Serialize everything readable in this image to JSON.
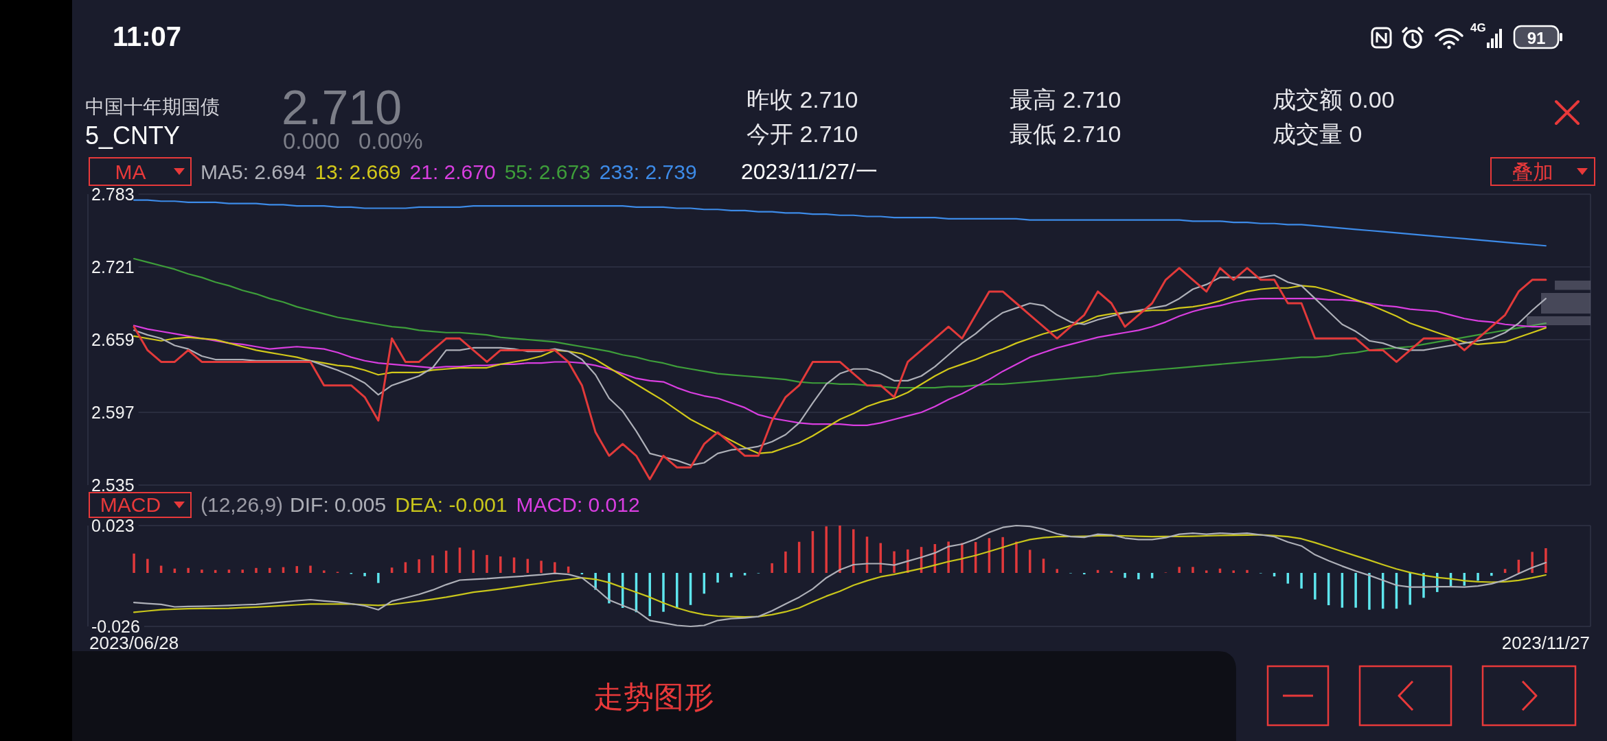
{
  "chart_data": [
    {
      "type": "line",
      "title": "中国十年期国债",
      "subtitle": "5_CNTY",
      "legend_title": "MA",
      "legend": "top left",
      "grid": "y",
      "tick_labels": "y",
      "annotations": [
        "11:07",
        "4G",
        "91",
        "2.710",
        "0.000",
        "0.00%",
        "昨收 2.710",
        "今开 2.710",
        "最高 2.710",
        "最低 2.710",
        "成交额 0.00",
        "成交量 0",
        "2023/11/27/一",
        "叠加",
        "走势图形"
      ],
      "categories": [
        "2023/06/28",
        null,
        null,
        null,
        null,
        null,
        null,
        null,
        null,
        null,
        null,
        null,
        null,
        null,
        null,
        null,
        null,
        null,
        null,
        null,
        null,
        null,
        null,
        null,
        null,
        null,
        null,
        null,
        null,
        null,
        null,
        null,
        null,
        null,
        null,
        null,
        null,
        null,
        null,
        null,
        null,
        null,
        null,
        null,
        null,
        null,
        null,
        null,
        null,
        null,
        null,
        null,
        null,
        null,
        null,
        null,
        null,
        null,
        null,
        null,
        null,
        null,
        null,
        null,
        null,
        null,
        null,
        null,
        null,
        null,
        null,
        null,
        null,
        null,
        null,
        null,
        null,
        null,
        null,
        null,
        null,
        null,
        null,
        null,
        null,
        null,
        null,
        null,
        null,
        null,
        null,
        null,
        null,
        null,
        null,
        null,
        null,
        null,
        null,
        null,
        null,
        null,
        null,
        null,
        "2023/11/27"
      ],
      "ylim": [
        2.535,
        2.783
      ],
      "yticks": [
        2.783,
        2.721,
        2.659,
        2.597,
        2.535
      ],
      "series": [
        {
          "color": "#e23a3a",
          "values": [
            2.67,
            2.65,
            2.64,
            2.64,
            2.65,
            2.64,
            2.64,
            2.64,
            2.64,
            2.64,
            2.64,
            2.64,
            2.64,
            2.64,
            2.62,
            2.62,
            2.62,
            2.61,
            2.59,
            2.66,
            2.64,
            2.64,
            2.65,
            2.66,
            2.66,
            2.65,
            2.64,
            2.65,
            2.65,
            2.65,
            2.65,
            2.65,
            2.64,
            2.62,
            2.58,
            2.56,
            2.57,
            2.56,
            2.54,
            2.56,
            2.55,
            2.55,
            2.57,
            2.58,
            2.57,
            2.56,
            2.56,
            2.59,
            2.61,
            2.62,
            2.64,
            2.64,
            2.64,
            2.63,
            2.62,
            2.62,
            2.61,
            2.64,
            2.65,
            2.66,
            2.67,
            2.66,
            2.68,
            2.7,
            2.7,
            2.69,
            2.68,
            2.67,
            2.66,
            2.67,
            2.68,
            2.7,
            2.69,
            2.67,
            2.68,
            2.69,
            2.71,
            2.72,
            2.71,
            2.7,
            2.72,
            2.71,
            2.72,
            2.71,
            2.71,
            2.69,
            2.69,
            2.66,
            2.66,
            2.66,
            2.66,
            2.65,
            2.65,
            2.64,
            2.65,
            2.66,
            2.66,
            2.66,
            2.65,
            2.66,
            2.67,
            2.68,
            2.7,
            2.71,
            2.71
          ]
        },
        {
          "name": "MA5: 2.694",
          "color": "#aeb0b8",
          "values": [
            2.667,
            2.663,
            2.66,
            2.654,
            2.651,
            2.645,
            2.642,
            2.642,
            2.642,
            2.641,
            2.641,
            2.641,
            2.641,
            2.641,
            2.637,
            2.633,
            2.628,
            2.622,
            2.612,
            2.62,
            2.624,
            2.628,
            2.635,
            2.65,
            2.65,
            2.652,
            2.652,
            2.652,
            2.651,
            2.649,
            2.649,
            2.651,
            2.649,
            2.642,
            2.629,
            2.609,
            2.598,
            2.581,
            2.562,
            2.559,
            2.556,
            2.552,
            2.554,
            2.562,
            2.565,
            2.566,
            2.568,
            2.572,
            2.578,
            2.588,
            2.605,
            2.621,
            2.63,
            2.634,
            2.634,
            2.63,
            2.624,
            2.624,
            2.628,
            2.636,
            2.646,
            2.656,
            2.664,
            2.674,
            2.682,
            2.686,
            2.69,
            2.688,
            2.68,
            2.674,
            2.672,
            2.676,
            2.679,
            2.682,
            2.684,
            2.686,
            2.688,
            2.694,
            2.702,
            2.706,
            2.712,
            2.712,
            2.712,
            2.712,
            2.714,
            2.708,
            2.705,
            2.694,
            2.683,
            2.672,
            2.666,
            2.658,
            2.656,
            2.652,
            2.65,
            2.65,
            2.652,
            2.654,
            2.656,
            2.658,
            2.66,
            2.665,
            2.673,
            2.684,
            2.694
          ]
        },
        {
          "name": "13: 2.669",
          "color": "#d2c81a",
          "values": [
            2.662,
            2.66,
            2.658,
            2.66,
            2.661,
            2.66,
            2.659,
            2.656,
            2.653,
            2.65,
            2.648,
            2.646,
            2.644,
            2.641,
            2.639,
            2.637,
            2.636,
            2.633,
            2.629,
            2.631,
            2.631,
            2.631,
            2.633,
            2.634,
            2.635,
            2.635,
            2.635,
            2.638,
            2.64,
            2.642,
            2.645,
            2.65,
            2.649,
            2.647,
            2.642,
            2.635,
            2.628,
            2.621,
            2.614,
            2.607,
            2.599,
            2.591,
            2.585,
            2.579,
            2.573,
            2.567,
            2.562,
            2.563,
            2.567,
            2.571,
            2.577,
            2.584,
            2.591,
            2.596,
            2.602,
            2.606,
            2.609,
            2.614,
            2.621,
            2.628,
            2.634,
            2.638,
            2.642,
            2.647,
            2.651,
            2.656,
            2.66,
            2.664,
            2.667,
            2.671,
            2.674,
            2.679,
            2.681,
            2.682,
            2.683,
            2.684,
            2.684,
            2.686,
            2.687,
            2.689,
            2.692,
            2.696,
            2.7,
            2.702,
            2.703,
            2.703,
            2.705,
            2.704,
            2.701,
            2.697,
            2.693,
            2.689,
            2.684,
            2.679,
            2.673,
            2.669,
            2.665,
            2.661,
            2.657,
            2.655,
            2.656,
            2.657,
            2.661,
            2.665,
            2.669
          ]
        },
        {
          "name": "21: 2.670",
          "color": "#d93ee0",
          "values": [
            2.671,
            2.668,
            2.666,
            2.664,
            2.662,
            2.66,
            2.658,
            2.656,
            2.655,
            2.653,
            2.651,
            2.652,
            2.653,
            2.652,
            2.651,
            2.648,
            2.644,
            2.641,
            2.639,
            2.638,
            2.637,
            2.636,
            2.635,
            2.636,
            2.636,
            2.637,
            2.637,
            2.638,
            2.638,
            2.639,
            2.639,
            2.64,
            2.64,
            2.639,
            2.637,
            2.634,
            2.63,
            2.626,
            2.624,
            2.623,
            2.618,
            2.614,
            2.611,
            2.609,
            2.605,
            2.601,
            2.595,
            2.592,
            2.59,
            2.588,
            2.587,
            2.587,
            2.587,
            2.586,
            2.586,
            2.588,
            2.591,
            2.594,
            2.597,
            2.602,
            2.608,
            2.613,
            2.619,
            2.625,
            2.632,
            2.638,
            2.644,
            2.648,
            2.652,
            2.655,
            2.658,
            2.661,
            2.663,
            2.665,
            2.667,
            2.67,
            2.674,
            2.679,
            2.683,
            2.686,
            2.688,
            2.691,
            2.693,
            2.694,
            2.694,
            2.694,
            2.694,
            2.694,
            2.693,
            2.693,
            2.692,
            2.69,
            2.688,
            2.687,
            2.685,
            2.684,
            2.683,
            2.68,
            2.677,
            2.675,
            2.674,
            2.672,
            2.671,
            2.67,
            2.67
          ]
        },
        {
          "name": "55: 2.673",
          "color": "#3e9e3a",
          "values": [
            2.728,
            2.725,
            2.722,
            2.719,
            2.715,
            2.712,
            2.708,
            2.705,
            2.701,
            2.698,
            2.694,
            2.691,
            2.687,
            2.684,
            2.681,
            2.678,
            2.676,
            2.674,
            2.672,
            2.67,
            2.669,
            2.667,
            2.666,
            2.665,
            2.665,
            2.664,
            2.663,
            2.661,
            2.66,
            2.659,
            2.658,
            2.657,
            2.655,
            2.653,
            2.651,
            2.649,
            2.646,
            2.644,
            2.641,
            2.639,
            2.636,
            2.634,
            2.632,
            2.63,
            2.629,
            2.628,
            2.627,
            2.626,
            2.625,
            2.623,
            2.622,
            2.622,
            2.621,
            2.621,
            2.62,
            2.619,
            2.618,
            2.618,
            2.618,
            2.618,
            2.619,
            2.619,
            2.62,
            2.621,
            2.621,
            2.622,
            2.623,
            2.624,
            2.625,
            2.626,
            2.627,
            2.628,
            2.63,
            2.631,
            2.632,
            2.633,
            2.634,
            2.635,
            2.636,
            2.637,
            2.638,
            2.639,
            2.64,
            2.641,
            2.642,
            2.643,
            2.644,
            2.644,
            2.645,
            2.647,
            2.648,
            2.65,
            2.651,
            2.652,
            2.653,
            2.655,
            2.657,
            2.659,
            2.661,
            2.663,
            2.665,
            2.667,
            2.669,
            2.671,
            2.673
          ]
        },
        {
          "name": "233: 2.739",
          "color": "#3d8be8",
          "values": [
            2.778,
            2.778,
            2.777,
            2.777,
            2.776,
            2.776,
            2.776,
            2.775,
            2.775,
            2.775,
            2.774,
            2.774,
            2.773,
            2.773,
            2.773,
            2.772,
            2.772,
            2.771,
            2.771,
            2.771,
            2.771,
            2.772,
            2.772,
            2.772,
            2.772,
            2.773,
            2.773,
            2.773,
            2.773,
            2.773,
            2.773,
            2.773,
            2.773,
            2.773,
            2.773,
            2.773,
            2.773,
            2.772,
            2.772,
            2.772,
            2.771,
            2.771,
            2.77,
            2.77,
            2.769,
            2.769,
            2.768,
            2.768,
            2.767,
            2.767,
            2.766,
            2.766,
            2.765,
            2.765,
            2.764,
            2.764,
            2.763,
            2.763,
            2.763,
            2.763,
            2.762,
            2.762,
            2.762,
            2.762,
            2.762,
            2.762,
            2.761,
            2.761,
            2.761,
            2.761,
            2.761,
            2.761,
            2.761,
            2.761,
            2.761,
            2.761,
            2.761,
            2.761,
            2.76,
            2.76,
            2.76,
            2.759,
            2.759,
            2.758,
            2.758,
            2.757,
            2.757,
            2.756,
            2.755,
            2.754,
            2.753,
            2.752,
            2.751,
            2.75,
            2.749,
            2.748,
            2.747,
            2.746,
            2.745,
            2.744,
            2.743,
            2.742,
            2.741,
            2.74,
            2.739
          ]
        }
      ]
    },
    {
      "type": "bar",
      "legend_title": "MACD",
      "legend": "top left",
      "annotations": [
        "(12,26,9)"
      ],
      "categories": [
        "2023/06/28",
        null,
        null,
        null,
        null,
        null,
        null,
        null,
        null,
        null,
        null,
        null,
        null,
        null,
        null,
        null,
        null,
        null,
        null,
        null,
        null,
        null,
        null,
        null,
        null,
        null,
        null,
        null,
        null,
        null,
        null,
        null,
        null,
        null,
        null,
        null,
        null,
        null,
        null,
        null,
        null,
        null,
        null,
        null,
        null,
        null,
        null,
        null,
        null,
        null,
        null,
        null,
        null,
        null,
        null,
        null,
        null,
        null,
        null,
        null,
        null,
        null,
        null,
        null,
        null,
        null,
        null,
        null,
        null,
        null,
        null,
        null,
        null,
        null,
        null,
        null,
        null,
        null,
        null,
        null,
        null,
        null,
        null,
        null,
        null,
        null,
        null,
        null,
        null,
        null,
        null,
        null,
        null,
        null,
        null,
        null,
        null,
        null,
        null,
        null,
        null,
        null,
        null,
        null,
        "2023/11/27"
      ],
      "ylim": [
        -0.026,
        0.023
      ],
      "yticks": [
        0.023,
        -0.026
      ],
      "series": [
        {
          "name": "DIF: 0.005",
          "type": "line",
          "color": "#aeb0b8",
          "values": [
            -0.0144,
            -0.0149,
            -0.0153,
            -0.0165,
            -0.0163,
            -0.0162,
            -0.016,
            -0.0158,
            -0.0155,
            -0.0153,
            -0.0147,
            -0.0141,
            -0.0135,
            -0.013,
            -0.0136,
            -0.0141,
            -0.015,
            -0.016,
            -0.0179,
            -0.0137,
            -0.0121,
            -0.0104,
            -0.0083,
            -0.0057,
            -0.0035,
            -0.0031,
            -0.0028,
            -0.0023,
            -0.0019,
            -0.0014,
            -0.0009,
            -0.0002,
            -0.0007,
            -0.0024,
            -0.0075,
            -0.0132,
            -0.0158,
            -0.0184,
            -0.0231,
            -0.0243,
            -0.0255,
            -0.026,
            -0.0255,
            -0.0231,
            -0.0222,
            -0.0219,
            -0.0212,
            -0.0184,
            -0.0151,
            -0.0118,
            -0.0078,
            -0.0024,
            0.0015,
            0.004,
            0.0045,
            0.0045,
            0.0038,
            0.0057,
            0.0076,
            0.0097,
            0.0128,
            0.014,
            0.0164,
            0.0197,
            0.0221,
            0.023,
            0.0226,
            0.0212,
            0.019,
            0.0176,
            0.0173,
            0.0188,
            0.0185,
            0.0169,
            0.0162,
            0.0162,
            0.0171,
            0.0188,
            0.0193,
            0.0188,
            0.0193,
            0.019,
            0.0193,
            0.0185,
            0.0176,
            0.015,
            0.0131,
            0.0088,
            0.0059,
            0.0033,
            0.0009,
            -0.0012,
            -0.0036,
            -0.006,
            -0.0069,
            -0.0069,
            -0.0067,
            -0.0067,
            -0.0069,
            -0.0064,
            -0.0053,
            -0.0034,
            -0.0003,
            0.0026,
            0.005
          ]
        },
        {
          "name": "DEA: -0.001",
          "type": "line",
          "color": "#c9c61b",
          "values": [
            -0.0191,
            -0.0185,
            -0.0179,
            -0.0176,
            -0.0174,
            -0.0173,
            -0.0173,
            -0.0172,
            -0.0169,
            -0.0166,
            -0.0163,
            -0.0159,
            -0.0155,
            -0.0151,
            -0.0151,
            -0.0151,
            -0.0151,
            -0.0155,
            -0.0158,
            -0.0153,
            -0.0145,
            -0.0137,
            -0.0128,
            -0.0118,
            -0.0106,
            -0.0094,
            -0.0086,
            -0.0078,
            -0.0069,
            -0.0059,
            -0.005,
            -0.004,
            -0.0032,
            -0.0024,
            -0.0031,
            -0.0047,
            -0.0071,
            -0.0094,
            -0.0118,
            -0.0146,
            -0.017,
            -0.0189,
            -0.0203,
            -0.021,
            -0.0212,
            -0.0214,
            -0.0212,
            -0.0203,
            -0.0189,
            -0.017,
            -0.0141,
            -0.0113,
            -0.0089,
            -0.006,
            -0.0038,
            -0.0019,
            -0.0007,
            0.0007,
            0.0021,
            0.0038,
            0.0055,
            0.0069,
            0.0085,
            0.0104,
            0.0124,
            0.0145,
            0.0162,
            0.0171,
            0.0176,
            0.0177,
            0.0178,
            0.018,
            0.0181,
            0.018,
            0.0178,
            0.0176,
            0.0177,
            0.0177,
            0.0178,
            0.018,
            0.0182,
            0.0183,
            0.0184,
            0.0185,
            0.0181,
            0.0176,
            0.0166,
            0.0147,
            0.0126,
            0.0104,
            0.0083,
            0.0062,
            0.004,
            0.0019,
            0.0002,
            -0.0012,
            -0.0022,
            -0.0029,
            -0.0038,
            -0.0043,
            -0.0045,
            -0.0043,
            -0.0036,
            -0.0024,
            -0.001
          ]
        },
        {
          "name": "MACD: 0.012",
          "color": "#d93ee0",
          "values": [
            0.0094,
            0.0068,
            0.0035,
            0.0021,
            0.0024,
            0.0016,
            0.0014,
            0.0016,
            0.0016,
            0.0024,
            0.0024,
            0.0028,
            0.0033,
            0.0035,
            0.0012,
            0.0005,
            -0.0005,
            -0.0016,
            -0.0049,
            0.0026,
            0.0052,
            0.0066,
            0.0085,
            0.0108,
            0.0123,
            0.0111,
            0.0087,
            0.008,
            0.0075,
            0.0068,
            0.0059,
            0.0052,
            0.0031,
            -0.0007,
            -0.0082,
            -0.0148,
            -0.017,
            -0.0191,
            -0.021,
            -0.0189,
            -0.0172,
            -0.0156,
            -0.0101,
            -0.0047,
            -0.0021,
            -0.0012,
            -0.0002,
            0.0047,
            0.0104,
            0.0151,
            0.0203,
            0.0226,
            0.023,
            0.0212,
            0.0176,
            0.0145,
            0.0105,
            0.0114,
            0.0126,
            0.014,
            0.0152,
            0.0145,
            0.015,
            0.0169,
            0.0174,
            0.0152,
            0.0112,
            0.0069,
            0.0019,
            -0.0002,
            -0.0007,
            0.0014,
            0.001,
            -0.0024,
            -0.0031,
            -0.0026,
            0.0002,
            0.0029,
            0.0029,
            0.0012,
            0.0021,
            0.0012,
            0.0014,
            -0.0002,
            -0.0017,
            -0.0052,
            -0.0076,
            -0.0129,
            -0.0157,
            -0.0169,
            -0.0169,
            -0.0179,
            -0.0174,
            -0.0174,
            -0.0155,
            -0.0121,
            -0.0093,
            -0.0069,
            -0.0062,
            -0.0038,
            -0.0014,
            0.0019,
            0.0064,
            0.0102,
            0.012
          ],
          "colors": [
            "#e0393b",
            "#e0393b",
            "#e0393b",
            "#e0393b",
            "#e0393b",
            "#e0393b",
            "#e0393b",
            "#e0393b",
            "#e0393b",
            "#e0393b",
            "#e0393b",
            "#e0393b",
            "#e0393b",
            "#e0393b",
            "#e0393b",
            "#e0393b",
            "#5ee6ee",
            "#5ee6ee",
            "#5ee6ee",
            "#e0393b",
            "#e0393b",
            "#e0393b",
            "#e0393b",
            "#e0393b",
            "#e0393b",
            "#e0393b",
            "#e0393b",
            "#e0393b",
            "#e0393b",
            "#e0393b",
            "#e0393b",
            "#e0393b",
            "#e0393b",
            "#5ee6ee",
            "#5ee6ee",
            "#5ee6ee",
            "#5ee6ee",
            "#5ee6ee",
            "#5ee6ee",
            "#5ee6ee",
            "#5ee6ee",
            "#5ee6ee",
            "#5ee6ee",
            "#5ee6ee",
            "#5ee6ee",
            "#5ee6ee",
            "#5ee6ee",
            "#e0393b",
            "#e0393b",
            "#e0393b",
            "#e0393b",
            "#e0393b",
            "#e0393b",
            "#e0393b",
            "#e0393b",
            "#e0393b",
            "#e0393b",
            "#e0393b",
            "#e0393b",
            "#e0393b",
            "#e0393b",
            "#e0393b",
            "#e0393b",
            "#e0393b",
            "#e0393b",
            "#e0393b",
            "#e0393b",
            "#e0393b",
            "#e0393b",
            "#5ee6ee",
            "#5ee6ee",
            "#e0393b",
            "#e0393b",
            "#5ee6ee",
            "#5ee6ee",
            "#5ee6ee",
            "#e0393b",
            "#e0393b",
            "#e0393b",
            "#e0393b",
            "#e0393b",
            "#e0393b",
            "#e0393b",
            "#5ee6ee",
            "#5ee6ee",
            "#5ee6ee",
            "#5ee6ee",
            "#5ee6ee",
            "#5ee6ee",
            "#5ee6ee",
            "#5ee6ee",
            "#5ee6ee",
            "#5ee6ee",
            "#5ee6ee",
            "#5ee6ee",
            "#5ee6ee",
            "#5ee6ee",
            "#5ee6ee",
            "#5ee6ee",
            "#5ee6ee",
            "#5ee6ee",
            "#e0393b",
            "#e0393b",
            "#e0393b",
            "#e0393b"
          ]
        }
      ]
    }
  ]
}
